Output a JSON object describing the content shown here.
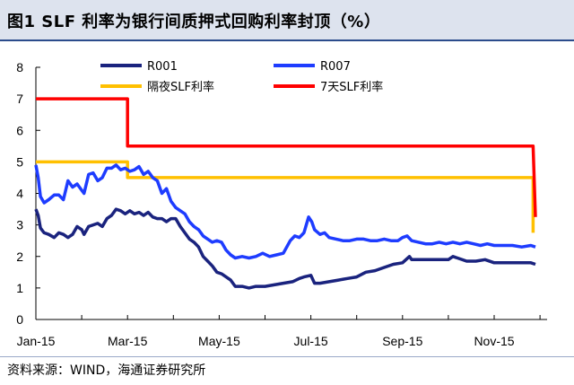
{
  "header": {
    "title": "图1  SLF 利率为银行间质押式回购利率封顶（%）"
  },
  "footer": {
    "source": "资料来源：WIND，海通证券研究所"
  },
  "chart_data": {
    "type": "line",
    "title": "",
    "xlabel": "",
    "ylabel": "",
    "ylim": [
      0,
      8
    ],
    "yticks": [
      0,
      1,
      2,
      3,
      4,
      5,
      6,
      7,
      8
    ],
    "xticks": [
      {
        "label": "Jan-15",
        "x": 0
      },
      {
        "label": "Mar-15",
        "x": 2
      },
      {
        "label": "May-15",
        "x": 4
      },
      {
        "label": "Jul-15",
        "x": 6
      },
      {
        "label": "Sep-15",
        "x": 8
      },
      {
        "label": "Nov-15",
        "x": 10
      }
    ],
    "xlim": [
      0,
      10.9
    ],
    "grid": false,
    "legend_position": "top",
    "series": [
      {
        "name": "R001",
        "color": "#1a237e",
        "width": 3.5,
        "points": [
          [
            0.0,
            3.5
          ],
          [
            0.05,
            3.3
          ],
          [
            0.1,
            2.9
          ],
          [
            0.18,
            2.75
          ],
          [
            0.28,
            2.7
          ],
          [
            0.4,
            2.6
          ],
          [
            0.5,
            2.75
          ],
          [
            0.6,
            2.7
          ],
          [
            0.7,
            2.6
          ],
          [
            0.8,
            2.7
          ],
          [
            0.9,
            2.95
          ],
          [
            1.0,
            2.85
          ],
          [
            1.05,
            2.7
          ],
          [
            1.15,
            2.95
          ],
          [
            1.25,
            3.0
          ],
          [
            1.35,
            3.05
          ],
          [
            1.45,
            2.95
          ],
          [
            1.55,
            3.2
          ],
          [
            1.65,
            3.3
          ],
          [
            1.75,
            3.5
          ],
          [
            1.85,
            3.45
          ],
          [
            1.95,
            3.35
          ],
          [
            2.05,
            3.45
          ],
          [
            2.15,
            3.35
          ],
          [
            2.25,
            3.4
          ],
          [
            2.35,
            3.3
          ],
          [
            2.45,
            3.4
          ],
          [
            2.55,
            3.25
          ],
          [
            2.65,
            3.2
          ],
          [
            2.75,
            3.2
          ],
          [
            2.85,
            3.1
          ],
          [
            2.95,
            3.2
          ],
          [
            3.05,
            3.2
          ],
          [
            3.15,
            2.95
          ],
          [
            3.25,
            2.75
          ],
          [
            3.35,
            2.55
          ],
          [
            3.45,
            2.45
          ],
          [
            3.55,
            2.3
          ],
          [
            3.65,
            2.0
          ],
          [
            3.75,
            1.85
          ],
          [
            3.85,
            1.7
          ],
          [
            3.95,
            1.5
          ],
          [
            4.05,
            1.45
          ],
          [
            4.15,
            1.35
          ],
          [
            4.25,
            1.25
          ],
          [
            4.35,
            1.05
          ],
          [
            4.5,
            1.05
          ],
          [
            4.65,
            1.0
          ],
          [
            4.8,
            1.05
          ],
          [
            5.0,
            1.05
          ],
          [
            5.2,
            1.1
          ],
          [
            5.4,
            1.15
          ],
          [
            5.6,
            1.2
          ],
          [
            5.75,
            1.3
          ],
          [
            5.85,
            1.35
          ],
          [
            6.0,
            1.4
          ],
          [
            6.08,
            1.15
          ],
          [
            6.2,
            1.15
          ],
          [
            6.4,
            1.2
          ],
          [
            6.6,
            1.25
          ],
          [
            6.8,
            1.3
          ],
          [
            7.0,
            1.35
          ],
          [
            7.2,
            1.5
          ],
          [
            7.4,
            1.55
          ],
          [
            7.6,
            1.65
          ],
          [
            7.8,
            1.75
          ],
          [
            8.0,
            1.8
          ],
          [
            8.15,
            2.0
          ],
          [
            8.2,
            1.9
          ],
          [
            8.4,
            1.9
          ],
          [
            8.6,
            1.9
          ],
          [
            8.8,
            1.9
          ],
          [
            9.0,
            1.9
          ],
          [
            9.1,
            2.0
          ],
          [
            9.2,
            1.95
          ],
          [
            9.4,
            1.85
          ],
          [
            9.6,
            1.85
          ],
          [
            9.8,
            1.9
          ],
          [
            10.0,
            1.8
          ],
          [
            10.2,
            1.8
          ],
          [
            10.4,
            1.8
          ],
          [
            10.6,
            1.8
          ],
          [
            10.8,
            1.8
          ],
          [
            10.9,
            1.75
          ]
        ]
      },
      {
        "name": "R007",
        "color": "#1e3cff",
        "width": 3.5,
        "points": [
          [
            0.0,
            4.9
          ],
          [
            0.05,
            4.5
          ],
          [
            0.1,
            3.9
          ],
          [
            0.18,
            3.7
          ],
          [
            0.28,
            3.8
          ],
          [
            0.4,
            3.95
          ],
          [
            0.5,
            3.95
          ],
          [
            0.6,
            3.8
          ],
          [
            0.7,
            4.4
          ],
          [
            0.8,
            4.2
          ],
          [
            0.9,
            4.3
          ],
          [
            1.0,
            4.1
          ],
          [
            1.05,
            4.0
          ],
          [
            1.15,
            4.6
          ],
          [
            1.25,
            4.65
          ],
          [
            1.35,
            4.4
          ],
          [
            1.45,
            4.5
          ],
          [
            1.55,
            4.8
          ],
          [
            1.65,
            4.8
          ],
          [
            1.75,
            4.9
          ],
          [
            1.85,
            4.75
          ],
          [
            1.95,
            4.8
          ],
          [
            2.05,
            4.7
          ],
          [
            2.15,
            4.75
          ],
          [
            2.25,
            4.85
          ],
          [
            2.35,
            4.6
          ],
          [
            2.45,
            4.7
          ],
          [
            2.55,
            4.5
          ],
          [
            2.65,
            4.4
          ],
          [
            2.75,
            4.0
          ],
          [
            2.85,
            4.15
          ],
          [
            2.95,
            3.75
          ],
          [
            3.05,
            3.55
          ],
          [
            3.15,
            3.45
          ],
          [
            3.25,
            3.35
          ],
          [
            3.35,
            3.1
          ],
          [
            3.45,
            2.95
          ],
          [
            3.55,
            2.85
          ],
          [
            3.65,
            2.65
          ],
          [
            3.75,
            2.55
          ],
          [
            3.85,
            2.45
          ],
          [
            3.95,
            2.5
          ],
          [
            4.05,
            2.45
          ],
          [
            4.15,
            2.2
          ],
          [
            4.25,
            2.05
          ],
          [
            4.35,
            1.95
          ],
          [
            4.5,
            2.0
          ],
          [
            4.65,
            1.95
          ],
          [
            4.8,
            2.0
          ],
          [
            4.95,
            2.1
          ],
          [
            5.1,
            2.0
          ],
          [
            5.25,
            2.05
          ],
          [
            5.4,
            2.1
          ],
          [
            5.55,
            2.5
          ],
          [
            5.65,
            2.65
          ],
          [
            5.75,
            2.6
          ],
          [
            5.85,
            2.75
          ],
          [
            5.95,
            3.25
          ],
          [
            6.02,
            3.1
          ],
          [
            6.08,
            2.85
          ],
          [
            6.2,
            2.7
          ],
          [
            6.3,
            2.75
          ],
          [
            6.4,
            2.6
          ],
          [
            6.55,
            2.55
          ],
          [
            6.7,
            2.5
          ],
          [
            6.85,
            2.5
          ],
          [
            7.0,
            2.55
          ],
          [
            7.15,
            2.55
          ],
          [
            7.3,
            2.5
          ],
          [
            7.45,
            2.5
          ],
          [
            7.6,
            2.55
          ],
          [
            7.75,
            2.5
          ],
          [
            7.9,
            2.5
          ],
          [
            8.0,
            2.6
          ],
          [
            8.1,
            2.65
          ],
          [
            8.2,
            2.5
          ],
          [
            8.35,
            2.45
          ],
          [
            8.5,
            2.4
          ],
          [
            8.65,
            2.4
          ],
          [
            8.8,
            2.45
          ],
          [
            8.95,
            2.4
          ],
          [
            9.1,
            2.45
          ],
          [
            9.25,
            2.4
          ],
          [
            9.4,
            2.45
          ],
          [
            9.55,
            2.4
          ],
          [
            9.7,
            2.35
          ],
          [
            9.85,
            2.4
          ],
          [
            10.0,
            2.35
          ],
          [
            10.2,
            2.35
          ],
          [
            10.4,
            2.35
          ],
          [
            10.6,
            2.3
          ],
          [
            10.8,
            2.35
          ],
          [
            10.9,
            2.3
          ]
        ]
      },
      {
        "name": "隔夜SLF利率",
        "color": "#ffc000",
        "width": 3.5,
        "points": [
          [
            0.0,
            5.0
          ],
          [
            2.0,
            5.0
          ],
          [
            2.0,
            4.5
          ],
          [
            10.85,
            4.5
          ],
          [
            10.85,
            2.75
          ]
        ]
      },
      {
        "name": "7天SLF利率",
        "color": "#ff0000",
        "width": 3.5,
        "points": [
          [
            0.0,
            7.0
          ],
          [
            2.0,
            7.0
          ],
          [
            2.0,
            5.5
          ],
          [
            10.85,
            5.5
          ],
          [
            10.9,
            3.25
          ]
        ]
      }
    ]
  }
}
